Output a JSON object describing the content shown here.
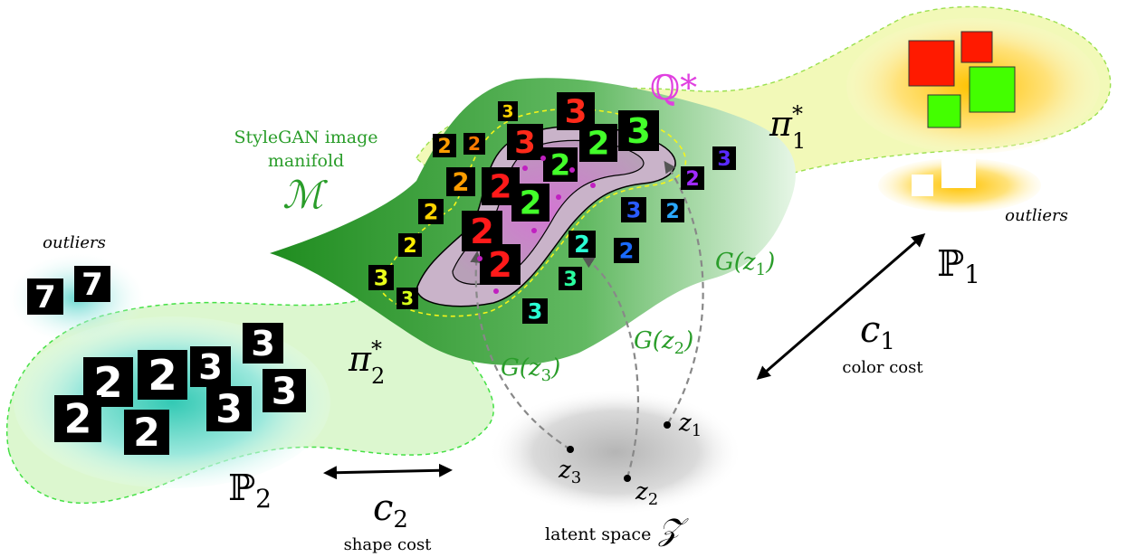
{
  "labels": {
    "q_star": "ℚ*",
    "pi1": "π",
    "pi1_sup": "*",
    "pi1_sub": "1",
    "pi2": "π",
    "pi2_sup": "*",
    "pi2_sub": "2",
    "manifold_line1": "StyleGAN image",
    "manifold_line2": "manifold",
    "manifold_symbol": "ℳ",
    "outliers_left": "outliers",
    "outliers_right": "outliers",
    "p1": "ℙ",
    "p1_sub": "1",
    "p2": "ℙ",
    "p2_sub": "2",
    "c1": "c",
    "c1_sub": "1",
    "c1_desc": "color cost",
    "c2": "c",
    "c2_sub": "2",
    "c2_desc": "shape cost",
    "g1": "G(z",
    "g1_sub": "1",
    "g1_close": ")",
    "g2": "G(z",
    "g2_sub": "2",
    "g2_close": ")",
    "g3": "G(z",
    "g3_sub": "3",
    "g3_close": ")",
    "z1": "z",
    "z1_sub": "1",
    "z2": "z",
    "z2_sub": "2",
    "z3": "z",
    "z3_sub": "3",
    "latent": "latent space",
    "latent_symbol": "𝒵"
  },
  "digits": {
    "manifold": [
      {
        "d": "3",
        "color": "#ffd400"
      },
      {
        "d": "2",
        "color": "#ff9d00"
      },
      {
        "d": "2",
        "color": "#ff7a00"
      },
      {
        "d": "3",
        "color": "#ff2a1a"
      },
      {
        "d": "3",
        "color": "#ff2a1a"
      },
      {
        "d": "2",
        "color": "#43ff2a"
      },
      {
        "d": "3",
        "color": "#43ff2a"
      },
      {
        "d": "2",
        "color": "#43ff2a"
      },
      {
        "d": "2",
        "color": "#ff9d00"
      },
      {
        "d": "2",
        "color": "#ff1a1a"
      },
      {
        "d": "2",
        "color": "#43ff2a"
      },
      {
        "d": "2",
        "color": "#ffd400"
      },
      {
        "d": "2",
        "color": "#ff1a1a"
      },
      {
        "d": "2",
        "color": "#ff1a1a"
      },
      {
        "d": "2",
        "color": "#ffee00"
      },
      {
        "d": "3",
        "color": "#eaff1a"
      },
      {
        "d": "3",
        "color": "#d6ff1a"
      },
      {
        "d": "2",
        "color": "#2affd4"
      },
      {
        "d": "3",
        "color": "#2affa0"
      },
      {
        "d": "3",
        "color": "#2affd4"
      },
      {
        "d": "3",
        "color": "#2a5bff"
      },
      {
        "d": "2",
        "color": "#2aa8ff"
      },
      {
        "d": "2",
        "color": "#1a6bff"
      },
      {
        "d": "2",
        "color": "#a02aff"
      },
      {
        "d": "3",
        "color": "#5a2aff"
      }
    ],
    "outliers_left": [
      {
        "d": "7"
      },
      {
        "d": "7"
      }
    ],
    "p2": [
      {
        "d": "2"
      },
      {
        "d": "2"
      },
      {
        "d": "3"
      },
      {
        "d": "3"
      },
      {
        "d": "2"
      },
      {
        "d": "3"
      },
      {
        "d": "3"
      },
      {
        "d": "2"
      }
    ]
  },
  "colors": {
    "red": "#ff1a00",
    "green": "#43ff00",
    "manifold_green": "#2a9d2a",
    "magenta": "#e040e0",
    "dashed_green": "#44ee44",
    "dashed_yellow": "#eeee22",
    "plan_fill": "#eef9a0",
    "gray_arrow": "#888888"
  }
}
